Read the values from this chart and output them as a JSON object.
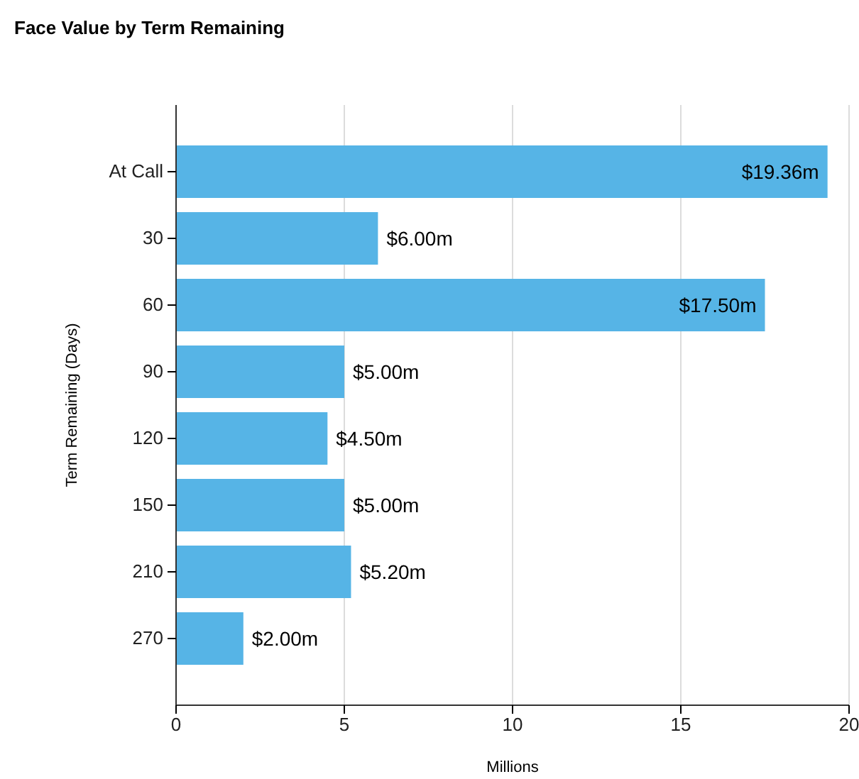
{
  "chart_data": {
    "type": "bar",
    "title": "Face Value by Term Remaining",
    "orientation": "horizontal",
    "xlabel": "Millions",
    "ylabel": "Term Remaining  (Days)",
    "categories": [
      "At Call",
      "30",
      "60",
      "90",
      "120",
      "150",
      "210",
      "270"
    ],
    "values": [
      19.36,
      6,
      17.5,
      5,
      4.5,
      5,
      5.2,
      2
    ],
    "value_labels": [
      "$19.36m",
      "$6.00m",
      "$17.50m",
      "$5.00m",
      "$4.50m",
      "$5.00m",
      "$5.20m",
      "$2.00m"
    ],
    "color": "#56b4e6",
    "xlim": [
      0,
      20
    ],
    "xticks": [
      0,
      5,
      10,
      15,
      20
    ],
    "grid": "x"
  }
}
